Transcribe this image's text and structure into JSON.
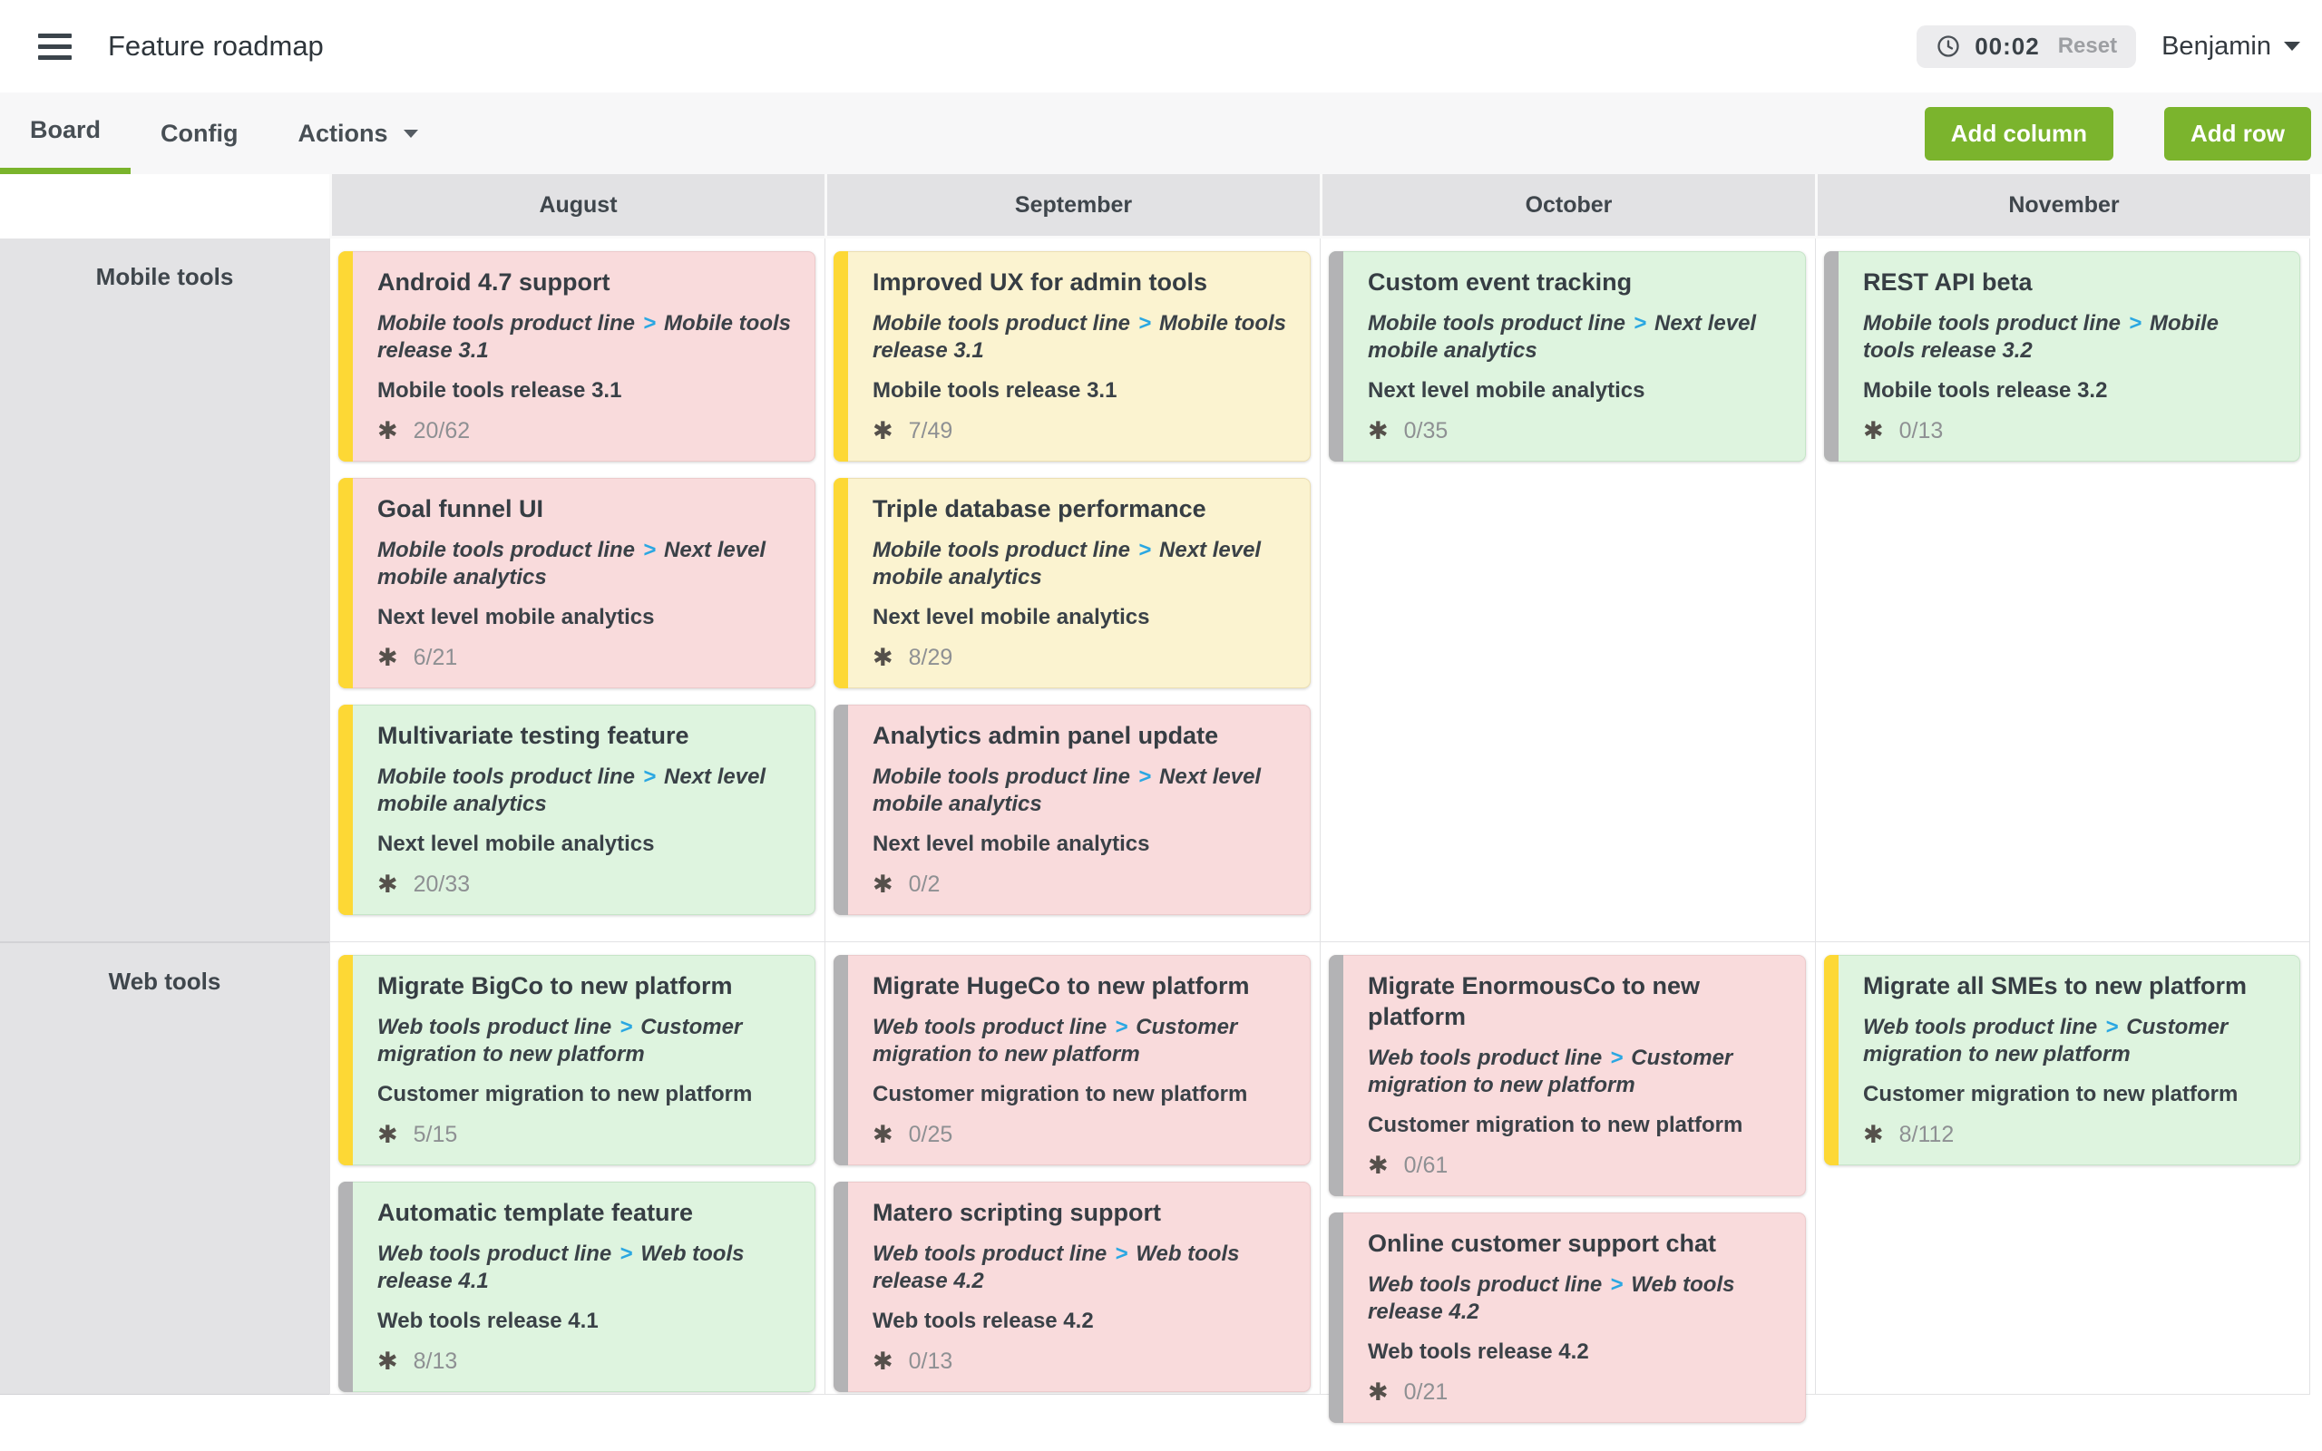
{
  "header": {
    "title": "Feature roadmap",
    "timer": {
      "time": "00:02",
      "reset_label": "Reset"
    },
    "user": {
      "name": "Benjamin"
    }
  },
  "tabs": {
    "items": [
      {
        "label": "Board",
        "active": true
      },
      {
        "label": "Config",
        "active": false
      },
      {
        "label": "Actions",
        "active": false,
        "has_dropdown": true
      }
    ],
    "add_column_label": "Add column",
    "add_row_label": "Add row"
  },
  "icons": {
    "menu": "hamburger-menu",
    "clock": "clock-outline",
    "chevron_down": "▾",
    "asterisk": "✱"
  },
  "colors": {
    "accent_green": "#7bb42d",
    "tab_underline_green": "#7ab42c",
    "header_cell_gray": "#e2e2e4",
    "card_pink": "#f9dbdc",
    "card_yellow": "#fbf3d0",
    "card_green": "#def4df",
    "stripe_yellow": "#fdd835",
    "stripe_gray": "#b3b3b5",
    "breadcrumb_separator_blue": "#2aa7e2"
  },
  "board": {
    "columns": [
      "August",
      "September",
      "October",
      "November"
    ],
    "rows": [
      {
        "label": "Mobile tools",
        "cells": [
          [
            {
              "title": "Android 4.7 support",
              "path": [
                "Mobile tools product line",
                "Mobile tools release 3.1"
              ],
              "release": "Mobile tools release 3.1",
              "progress": "20/62",
              "color": "pink",
              "stripe": "yellow"
            },
            {
              "title": "Goal funnel UI",
              "path": [
                "Mobile tools product line",
                "Next level mobile analytics"
              ],
              "release": "Next level mobile analytics",
              "progress": "6/21",
              "color": "pink",
              "stripe": "yellow"
            },
            {
              "title": "Multivariate testing feature",
              "path": [
                "Mobile tools product line",
                "Next level mobile analytics"
              ],
              "release": "Next level mobile analytics",
              "progress": "20/33",
              "color": "green",
              "stripe": "yellow"
            }
          ],
          [
            {
              "title": "Improved UX for admin tools",
              "path": [
                "Mobile tools product line",
                "Mobile tools release 3.1"
              ],
              "release": "Mobile tools release 3.1",
              "progress": "7/49",
              "color": "yellow",
              "stripe": "yellow"
            },
            {
              "title": "Triple database performance",
              "path": [
                "Mobile tools product line",
                "Next level mobile analytics"
              ],
              "release": "Next level mobile analytics",
              "progress": "8/29",
              "color": "yellow",
              "stripe": "yellow"
            },
            {
              "title": "Analytics admin panel update",
              "path": [
                "Mobile tools product line",
                "Next level mobile analytics"
              ],
              "release": "Next level mobile analytics",
              "progress": "0/2",
              "color": "pink",
              "stripe": "gray"
            }
          ],
          [
            {
              "title": "Custom event tracking",
              "path": [
                "Mobile tools product line",
                "Next level mobile analytics"
              ],
              "release": "Next level mobile analytics",
              "progress": "0/35",
              "color": "green",
              "stripe": "gray"
            }
          ],
          [
            {
              "title": "REST API beta",
              "path": [
                "Mobile tools product line",
                "Mobile tools release 3.2"
              ],
              "release": "Mobile tools release 3.2",
              "progress": "0/13",
              "color": "green",
              "stripe": "gray"
            }
          ]
        ]
      },
      {
        "label": "Web tools",
        "cells": [
          [
            {
              "title": "Migrate BigCo to new platform",
              "path": [
                "Web tools product line",
                "Customer migration to new platform"
              ],
              "release": "Customer migration to new platform",
              "progress": "5/15",
              "color": "green",
              "stripe": "yellow"
            },
            {
              "title": "Automatic template feature",
              "path": [
                "Web tools product line",
                "Web tools release 4.1"
              ],
              "release": "Web tools release 4.1",
              "progress": "8/13",
              "color": "green",
              "stripe": "gray"
            }
          ],
          [
            {
              "title": "Migrate HugeCo to new platform",
              "path": [
                "Web tools product line",
                "Customer migration to new platform"
              ],
              "release": "Customer migration to new platform",
              "progress": "0/25",
              "color": "pink",
              "stripe": "gray"
            },
            {
              "title": "Matero scripting support",
              "path": [
                "Web tools product line",
                "Web tools release 4.2"
              ],
              "release": "Web tools release 4.2",
              "progress": "0/13",
              "color": "pink",
              "stripe": "gray"
            }
          ],
          [
            {
              "title": "Migrate EnormousCo to new platform",
              "path": [
                "Web tools product line",
                "Customer migration to new platform"
              ],
              "release": "Customer migration to new platform",
              "progress": "0/61",
              "color": "pink",
              "stripe": "gray"
            },
            {
              "title": "Online customer support chat",
              "path": [
                "Web tools product line",
                "Web tools release 4.2"
              ],
              "release": "Web tools release 4.2",
              "progress": "0/21",
              "color": "pink",
              "stripe": "gray"
            }
          ],
          [
            {
              "title": "Migrate all SMEs to new platform",
              "path": [
                "Web tools product line",
                "Customer migration to new platform"
              ],
              "release": "Customer migration to new platform",
              "progress": "8/112",
              "color": "green",
              "stripe": "yellow"
            }
          ]
        ]
      }
    ]
  }
}
